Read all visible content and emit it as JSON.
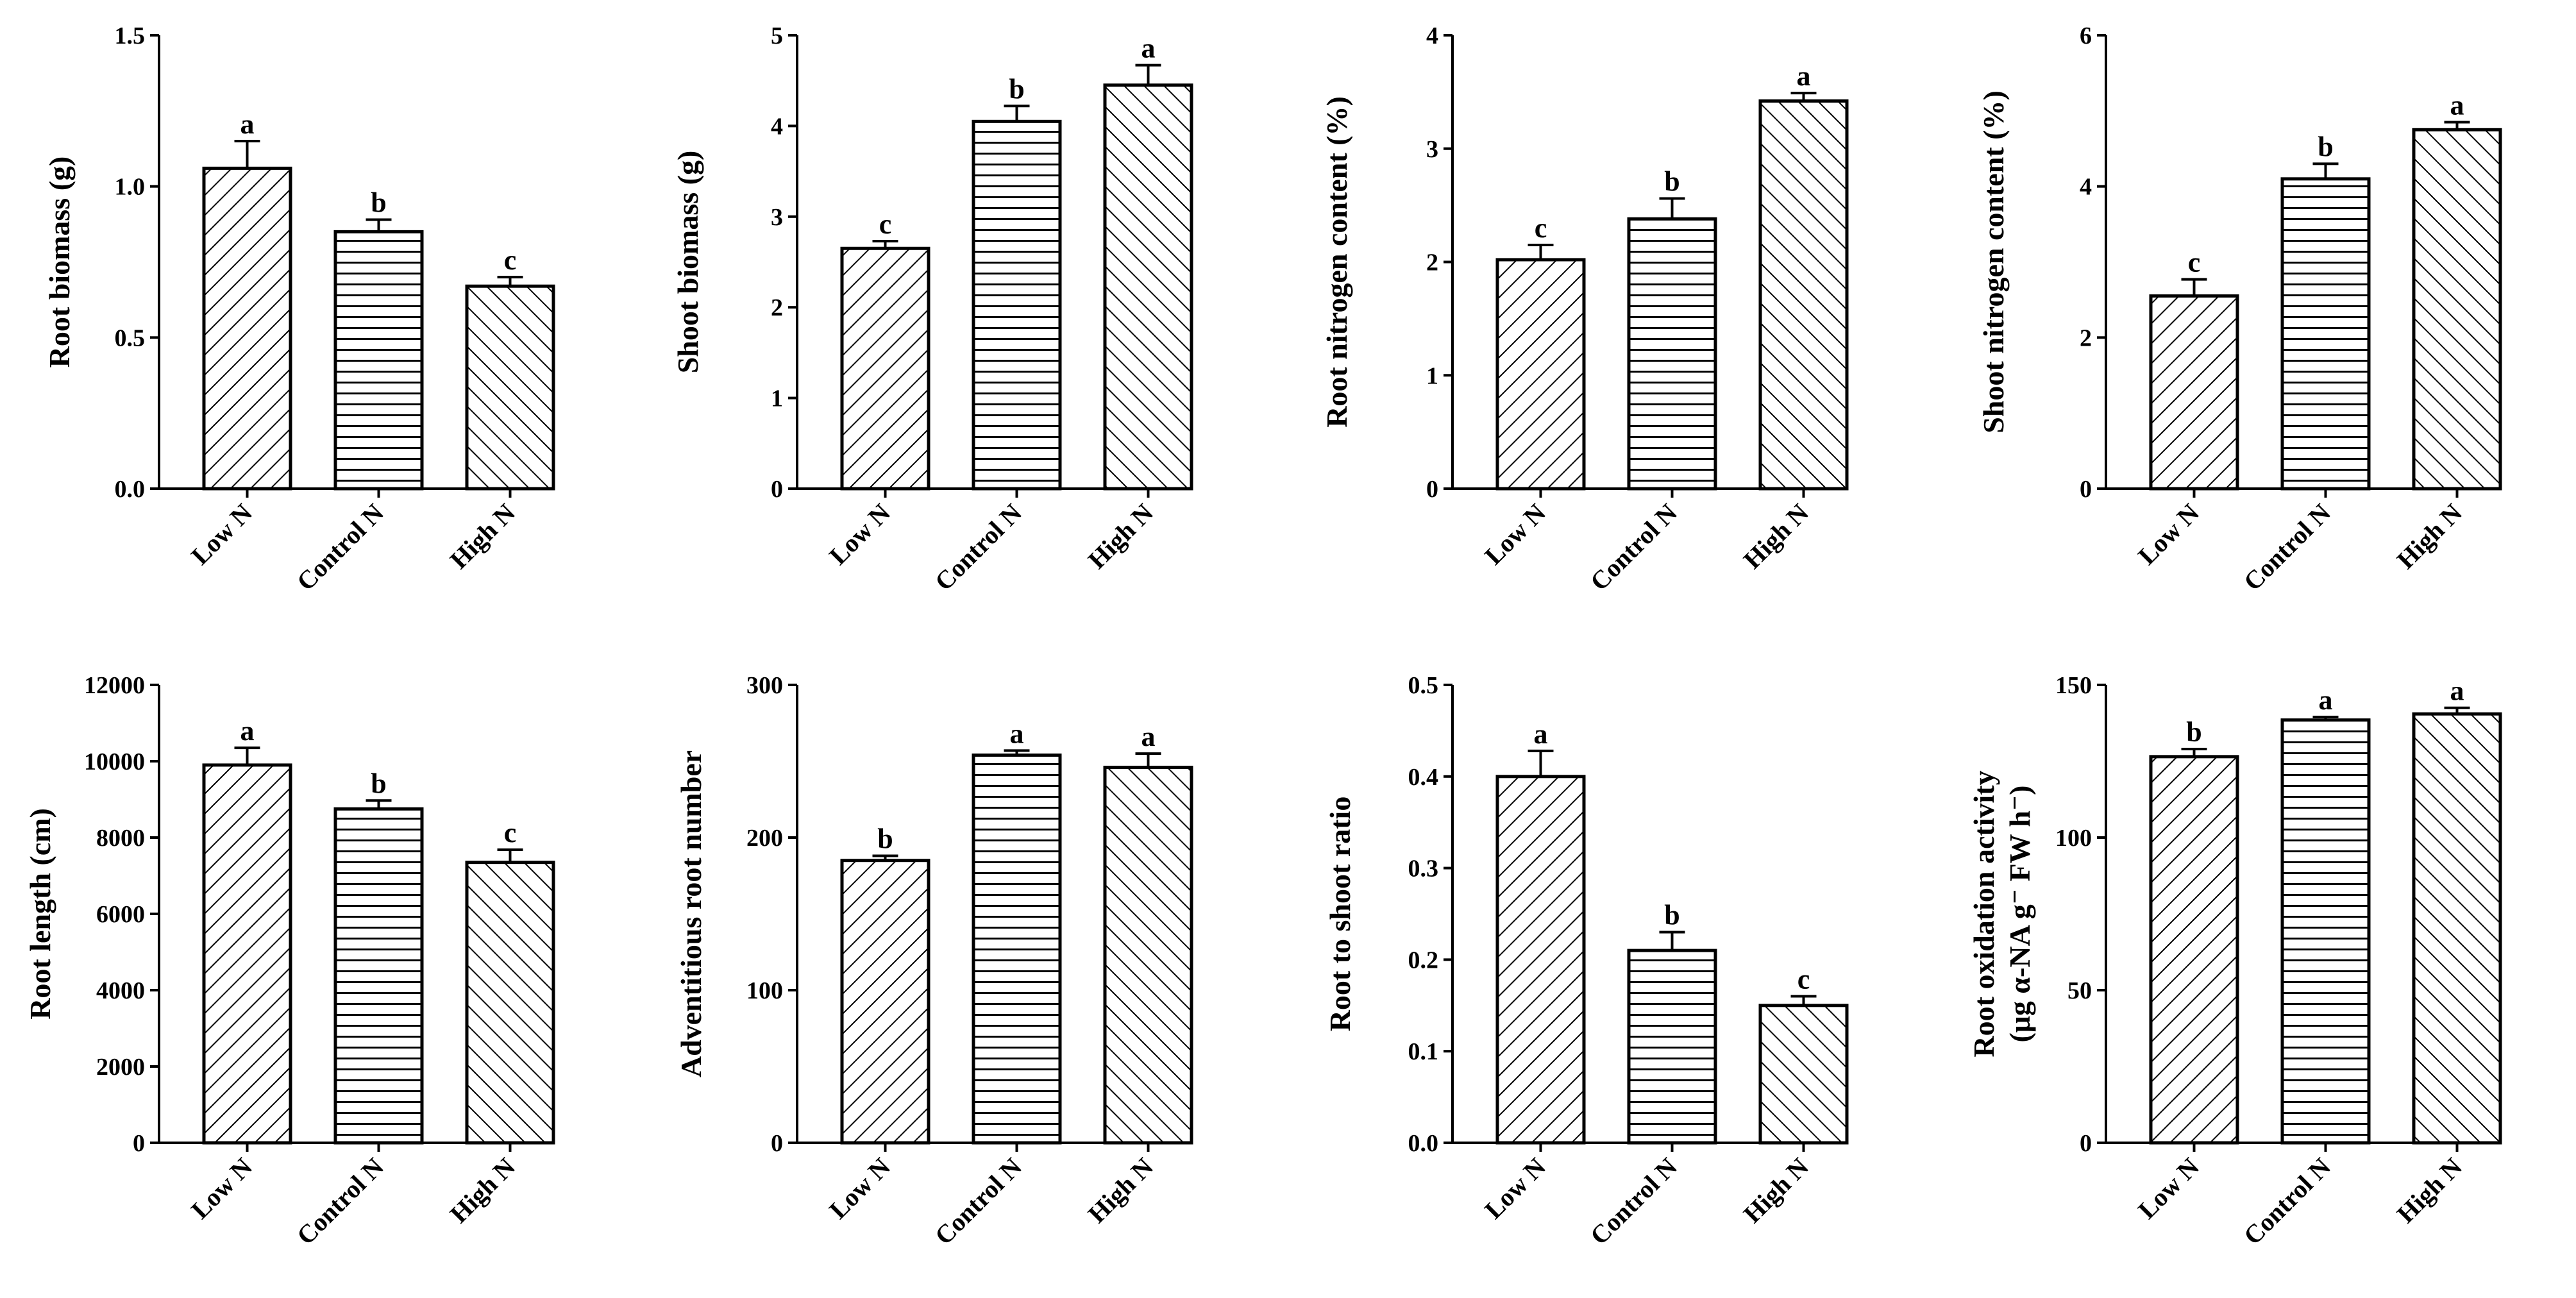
{
  "chart_data": [
    {
      "type": "bar",
      "categories": [
        "Low N",
        "Control N",
        "High N"
      ],
      "ylabel": [
        "Root biomass (g)"
      ],
      "ylim": [
        0,
        1.5
      ],
      "yticks": [
        0,
        0.5,
        1.0,
        1.5
      ],
      "ytick_labels": [
        "0.0",
        "0.5",
        "1.0",
        "1.5"
      ],
      "values": [
        1.06,
        0.85,
        0.67
      ],
      "errors": [
        0.09,
        0.04,
        0.03
      ],
      "letters": [
        "a",
        "b",
        "c"
      ],
      "patterns": [
        "diag-right",
        "horizontal",
        "diag-left"
      ]
    },
    {
      "type": "bar",
      "categories": [
        "Low N",
        "Control N",
        "High N"
      ],
      "ylabel": [
        "Shoot biomass (g)"
      ],
      "ylim": [
        0,
        5
      ],
      "yticks": [
        0,
        1,
        2,
        3,
        4,
        5
      ],
      "ytick_labels": [
        "0",
        "1",
        "2",
        "3",
        "4",
        "5"
      ],
      "values": [
        2.65,
        4.05,
        4.45
      ],
      "errors": [
        0.08,
        0.17,
        0.22
      ],
      "letters": [
        "c",
        "b",
        "a"
      ],
      "patterns": [
        "diag-right",
        "horizontal",
        "diag-left"
      ]
    },
    {
      "type": "bar",
      "categories": [
        "Low N",
        "Control N",
        "High N"
      ],
      "ylabel": [
        "Root nitrogen content (%)"
      ],
      "ylim": [
        0,
        4
      ],
      "yticks": [
        0,
        1,
        2,
        3,
        4
      ],
      "ytick_labels": [
        "0",
        "1",
        "2",
        "3",
        "4"
      ],
      "values": [
        2.02,
        2.38,
        3.42
      ],
      "errors": [
        0.13,
        0.18,
        0.07
      ],
      "letters": [
        "c",
        "b",
        "a"
      ],
      "patterns": [
        "diag-right",
        "horizontal",
        "diag-left"
      ]
    },
    {
      "type": "bar",
      "categories": [
        "Low N",
        "Control N",
        "High N"
      ],
      "ylabel": [
        "Shoot nitrogen content (%)"
      ],
      "ylim": [
        0,
        6
      ],
      "yticks": [
        0,
        2,
        4,
        6
      ],
      "ytick_labels": [
        "0",
        "2",
        "4",
        "6"
      ],
      "values": [
        2.55,
        4.1,
        4.75
      ],
      "errors": [
        0.22,
        0.2,
        0.1
      ],
      "letters": [
        "c",
        "b",
        "a"
      ],
      "patterns": [
        "diag-right",
        "horizontal",
        "diag-left"
      ]
    },
    {
      "type": "bar",
      "categories": [
        "Low N",
        "Control N",
        "High N"
      ],
      "ylabel": [
        "Root length (cm)"
      ],
      "ylim": [
        0,
        12000
      ],
      "yticks": [
        0,
        2000,
        4000,
        6000,
        8000,
        10000,
        12000
      ],
      "ytick_labels": [
        "0",
        "2000",
        "4000",
        "6000",
        "8000",
        "10000",
        "12000"
      ],
      "values": [
        9900,
        8750,
        7350
      ],
      "errors": [
        450,
        220,
        330
      ],
      "letters": [
        "a",
        "b",
        "c"
      ],
      "patterns": [
        "diag-right",
        "horizontal",
        "diag-left"
      ]
    },
    {
      "type": "bar",
      "categories": [
        "Low N",
        "Control N",
        "High N"
      ],
      "ylabel": [
        "Adventitious root number"
      ],
      "ylim": [
        0,
        300
      ],
      "yticks": [
        0,
        100,
        200,
        300
      ],
      "ytick_labels": [
        "0",
        "100",
        "200",
        "300"
      ],
      "values": [
        185,
        254,
        246
      ],
      "errors": [
        3,
        3,
        9
      ],
      "letters": [
        "b",
        "a",
        "a"
      ],
      "patterns": [
        "diag-right",
        "horizontal",
        "diag-left"
      ]
    },
    {
      "type": "bar",
      "categories": [
        "Low N",
        "Control N",
        "High N"
      ],
      "ylabel": [
        "Root to shoot ratio"
      ],
      "ylim": [
        0,
        0.5
      ],
      "yticks": [
        0,
        0.1,
        0.2,
        0.3,
        0.4,
        0.5
      ],
      "ytick_labels": [
        "0.0",
        "0.1",
        "0.2",
        "0.3",
        "0.4",
        "0.5"
      ],
      "values": [
        0.4,
        0.21,
        0.15
      ],
      "errors": [
        0.028,
        0.02,
        0.01
      ],
      "letters": [
        "a",
        "b",
        "c"
      ],
      "patterns": [
        "diag-right",
        "horizontal",
        "diag-left"
      ]
    },
    {
      "type": "bar",
      "categories": [
        "Low N",
        "Control N",
        "High N"
      ],
      "ylabel": [
        "Root oxidation activity",
        "(μg α-NA g⁻ FW h⁻)"
      ],
      "ylim": [
        0,
        150
      ],
      "yticks": [
        0,
        50,
        100,
        150
      ],
      "ytick_labels": [
        "0",
        "50",
        "100",
        "150"
      ],
      "values": [
        126.5,
        138.5,
        140.5
      ],
      "errors": [
        2.5,
        1.0,
        2.0
      ],
      "letters": [
        "b",
        "a",
        "a"
      ],
      "patterns": [
        "diag-right",
        "horizontal",
        "diag-left"
      ]
    }
  ]
}
